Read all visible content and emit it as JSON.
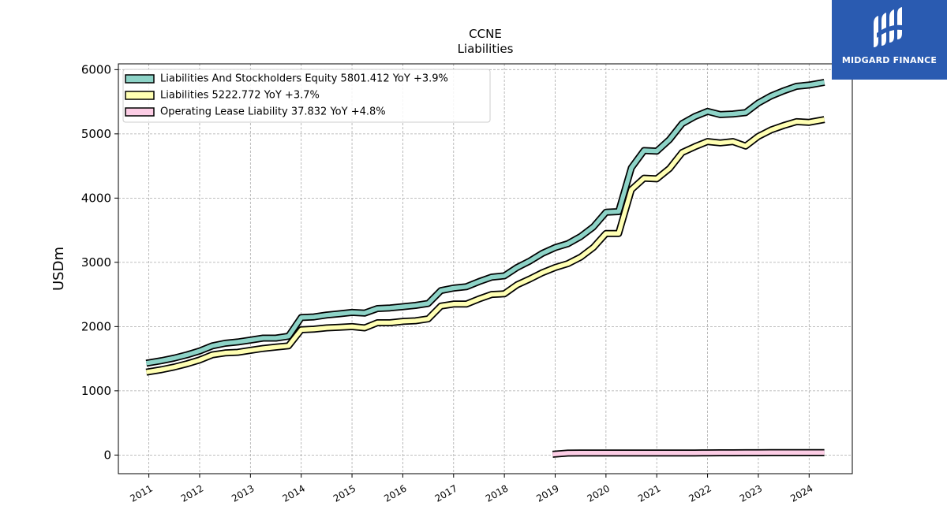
{
  "chart_data": {
    "type": "line",
    "title": "CCNE",
    "subtitle": "Liabilities",
    "xlabel": "",
    "ylabel": "USDm",
    "xlim": [
      2010.4,
      2024.85
    ],
    "ylim": [
      -290,
      6090
    ],
    "x_ticks": [
      "2011",
      "2012",
      "2013",
      "2014",
      "2015",
      "2016",
      "2017",
      "2018",
      "2019",
      "2020",
      "2021",
      "2022",
      "2023",
      "2024"
    ],
    "y_ticks": [
      0,
      1000,
      2000,
      3000,
      4000,
      5000,
      6000
    ],
    "grid": true,
    "legend_position": "top-left",
    "series": [
      {
        "name": "Liabilities And Stockholders Equity",
        "legend": "Liabilities And Stockholders Equity  5801.412 YoY +3.9%",
        "color": "#8dd3c7",
        "points": [
          [
            2010.95,
            1430
          ],
          [
            2011.25,
            1470
          ],
          [
            2011.5,
            1510
          ],
          [
            2011.75,
            1560
          ],
          [
            2012.0,
            1620
          ],
          [
            2012.25,
            1700
          ],
          [
            2012.5,
            1740
          ],
          [
            2012.75,
            1760
          ],
          [
            2013.0,
            1790
          ],
          [
            2013.25,
            1820
          ],
          [
            2013.5,
            1820
          ],
          [
            2013.75,
            1850
          ],
          [
            2014.0,
            2140
          ],
          [
            2014.25,
            2150
          ],
          [
            2014.5,
            2180
          ],
          [
            2014.75,
            2200
          ],
          [
            2015.0,
            2220
          ],
          [
            2015.25,
            2210
          ],
          [
            2015.5,
            2280
          ],
          [
            2015.75,
            2290
          ],
          [
            2016.0,
            2310
          ],
          [
            2016.25,
            2330
          ],
          [
            2016.5,
            2360
          ],
          [
            2016.75,
            2560
          ],
          [
            2017.0,
            2600
          ],
          [
            2017.25,
            2620
          ],
          [
            2017.5,
            2700
          ],
          [
            2017.75,
            2770
          ],
          [
            2018.0,
            2790
          ],
          [
            2018.25,
            2920
          ],
          [
            2018.5,
            3020
          ],
          [
            2018.75,
            3140
          ],
          [
            2019.0,
            3230
          ],
          [
            2019.25,
            3290
          ],
          [
            2019.5,
            3400
          ],
          [
            2019.75,
            3550
          ],
          [
            2020.0,
            3780
          ],
          [
            2020.25,
            3790
          ],
          [
            2020.5,
            4470
          ],
          [
            2020.75,
            4740
          ],
          [
            2021.0,
            4730
          ],
          [
            2021.25,
            4910
          ],
          [
            2021.5,
            5160
          ],
          [
            2021.75,
            5270
          ],
          [
            2022.0,
            5350
          ],
          [
            2022.25,
            5300
          ],
          [
            2022.5,
            5310
          ],
          [
            2022.75,
            5330
          ],
          [
            2023.0,
            5480
          ],
          [
            2023.25,
            5590
          ],
          [
            2023.5,
            5670
          ],
          [
            2023.75,
            5740
          ],
          [
            2024.0,
            5760
          ],
          [
            2024.3,
            5801.412
          ]
        ]
      },
      {
        "name": "Liabilities",
        "legend": "Liabilities  5222.772 YoY +3.7%",
        "color": "#ffffb3",
        "points": [
          [
            2010.95,
            1290
          ],
          [
            2011.25,
            1330
          ],
          [
            2011.5,
            1370
          ],
          [
            2011.75,
            1420
          ],
          [
            2012.0,
            1480
          ],
          [
            2012.25,
            1560
          ],
          [
            2012.5,
            1590
          ],
          [
            2012.75,
            1600
          ],
          [
            2013.0,
            1630
          ],
          [
            2013.25,
            1660
          ],
          [
            2013.5,
            1680
          ],
          [
            2013.75,
            1700
          ],
          [
            2014.0,
            1950
          ],
          [
            2014.25,
            1960
          ],
          [
            2014.5,
            1980
          ],
          [
            2014.75,
            1990
          ],
          [
            2015.0,
            2000
          ],
          [
            2015.25,
            1980
          ],
          [
            2015.5,
            2060
          ],
          [
            2015.75,
            2060
          ],
          [
            2016.0,
            2080
          ],
          [
            2016.25,
            2090
          ],
          [
            2016.5,
            2120
          ],
          [
            2016.75,
            2320
          ],
          [
            2017.0,
            2350
          ],
          [
            2017.25,
            2350
          ],
          [
            2017.5,
            2430
          ],
          [
            2017.75,
            2500
          ],
          [
            2018.0,
            2510
          ],
          [
            2018.25,
            2650
          ],
          [
            2018.5,
            2740
          ],
          [
            2018.75,
            2840
          ],
          [
            2019.0,
            2920
          ],
          [
            2019.25,
            2980
          ],
          [
            2019.5,
            3080
          ],
          [
            2019.75,
            3230
          ],
          [
            2020.0,
            3450
          ],
          [
            2020.25,
            3450
          ],
          [
            2020.5,
            4130
          ],
          [
            2020.75,
            4310
          ],
          [
            2021.0,
            4300
          ],
          [
            2021.25,
            4460
          ],
          [
            2021.5,
            4710
          ],
          [
            2021.75,
            4800
          ],
          [
            2022.0,
            4880
          ],
          [
            2022.25,
            4860
          ],
          [
            2022.5,
            4880
          ],
          [
            2022.75,
            4810
          ],
          [
            2023.0,
            4960
          ],
          [
            2023.25,
            5060
          ],
          [
            2023.5,
            5130
          ],
          [
            2023.75,
            5190
          ],
          [
            2024.0,
            5180
          ],
          [
            2024.3,
            5222.772
          ]
        ]
      },
      {
        "name": "Operating Lease Liability",
        "legend": "Operating Lease Liability  37.832 YoY +4.8%",
        "color": "#fccde5",
        "points": [
          [
            2018.95,
            12
          ],
          [
            2019.25,
            30
          ],
          [
            2019.5,
            31
          ],
          [
            2019.75,
            31
          ],
          [
            2020.0,
            32
          ],
          [
            2020.25,
            32
          ],
          [
            2020.5,
            32
          ],
          [
            2020.75,
            32
          ],
          [
            2021.0,
            32
          ],
          [
            2021.25,
            33
          ],
          [
            2021.5,
            33
          ],
          [
            2021.75,
            33
          ],
          [
            2022.0,
            34
          ],
          [
            2022.25,
            35
          ],
          [
            2022.5,
            35
          ],
          [
            2022.75,
            36
          ],
          [
            2023.0,
            36
          ],
          [
            2023.25,
            37
          ],
          [
            2023.5,
            37
          ],
          [
            2023.75,
            37
          ],
          [
            2024.0,
            37.5
          ],
          [
            2024.3,
            37.832
          ]
        ]
      }
    ]
  },
  "logo": {
    "text": "MIDGARD FINANCE",
    "background": "#2a5bb1"
  }
}
